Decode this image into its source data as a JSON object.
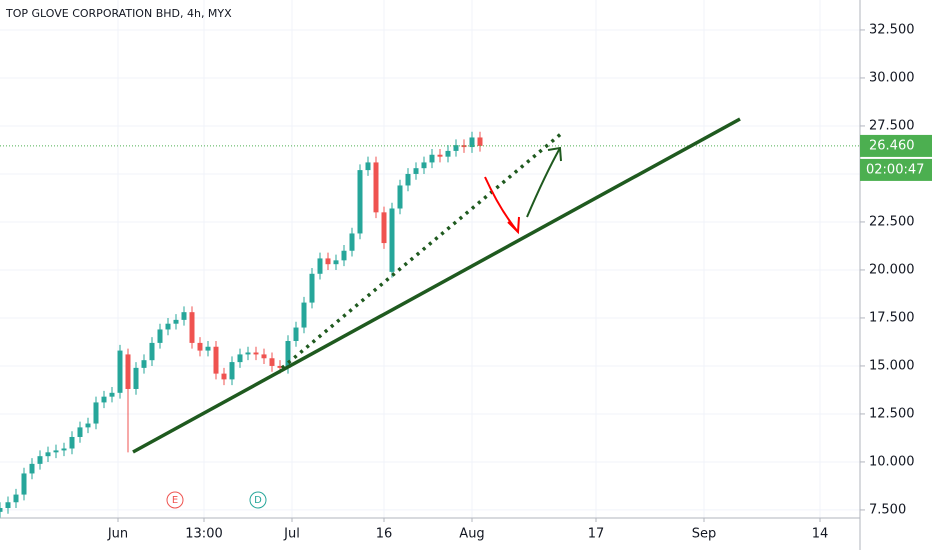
{
  "chart_data": {
    "type": "candlestick",
    "title": "TOP GLOVE CORPORATION BHD, 4h, MYX",
    "x": [
      0,
      2,
      4,
      6,
      8,
      10,
      12,
      14,
      16,
      18,
      20,
      22,
      24,
      26,
      28,
      30,
      32,
      34,
      36,
      38,
      40,
      42,
      44,
      46,
      48,
      50,
      52,
      54,
      56,
      58,
      60,
      62,
      64,
      66,
      68,
      70,
      72,
      74,
      76,
      78,
      80,
      82,
      84,
      86,
      88,
      90,
      92,
      94,
      96,
      98,
      100,
      102,
      104,
      106,
      108,
      110,
      112,
      114,
      116,
      118,
      120
    ],
    "open": [
      7.4,
      7.6,
      7.9,
      8.3,
      9.4,
      9.9,
      10.3,
      10.5,
      10.6,
      10.7,
      11.3,
      11.8,
      12.0,
      13.1,
      13.4,
      13.6,
      15.6,
      13.8,
      14.9,
      15.3,
      16.2,
      16.9,
      17.2,
      17.4,
      17.8,
      16.2,
      15.8,
      16.0,
      14.6,
      14.3,
      15.2,
      15.6,
      15.7,
      15.6,
      15.4,
      15.0,
      14.9,
      16.3,
      17.0,
      18.3,
      19.8,
      20.6,
      20.3,
      20.5,
      21.0,
      21.9,
      25.2,
      25.6,
      23.0,
      19.9,
      23.2,
      24.4,
      25.0,
      25.3,
      25.6,
      26.0,
      25.9,
      26.2,
      26.5,
      26.4,
      26.9
    ],
    "high": [
      7.9,
      8.2,
      8.6,
      9.7,
      10.2,
      10.6,
      10.8,
      10.9,
      11.0,
      11.6,
      12.1,
      12.3,
      13.4,
      13.7,
      13.9,
      16.1,
      15.9,
      15.2,
      15.6,
      16.5,
      17.2,
      17.5,
      17.7,
      18.1,
      18.1,
      16.5,
      16.3,
      16.3,
      14.9,
      15.5,
      15.9,
      16.0,
      16.0,
      15.9,
      15.7,
      15.3,
      16.6,
      17.3,
      18.6,
      20.1,
      20.9,
      20.9,
      20.8,
      21.3,
      22.2,
      25.5,
      25.9,
      25.9,
      23.3,
      23.5,
      24.7,
      25.3,
      25.6,
      25.9,
      26.3,
      26.3,
      26.5,
      26.8,
      26.8,
      27.2,
      27.2
    ],
    "low": [
      7.1,
      7.3,
      7.6,
      8.0,
      9.1,
      9.6,
      10.0,
      10.2,
      10.3,
      10.4,
      11.0,
      11.5,
      11.7,
      12.8,
      13.1,
      13.3,
      10.5,
      13.5,
      14.6,
      15.0,
      15.9,
      16.6,
      16.9,
      17.1,
      15.9,
      15.5,
      15.5,
      14.3,
      14.0,
      14.0,
      14.9,
      15.3,
      15.3,
      15.1,
      14.7,
      14.6,
      14.6,
      16.0,
      16.7,
      18.0,
      19.5,
      20.0,
      20.0,
      20.2,
      20.7,
      21.6,
      24.9,
      22.7,
      21.1,
      19.6,
      22.9,
      24.1,
      24.7,
      25.0,
      25.3,
      25.6,
      25.6,
      25.9,
      26.1,
      26.1,
      26.16
    ],
    "close": [
      7.6,
      7.9,
      8.3,
      9.4,
      9.9,
      10.3,
      10.5,
      10.6,
      10.7,
      11.3,
      11.8,
      12.0,
      13.1,
      13.4,
      13.6,
      15.8,
      13.8,
      14.9,
      15.3,
      16.2,
      16.9,
      17.2,
      17.4,
      17.8,
      16.2,
      15.8,
      16.0,
      14.6,
      14.3,
      15.2,
      15.6,
      15.7,
      15.6,
      15.4,
      15.0,
      14.9,
      16.3,
      17.0,
      18.3,
      19.8,
      20.6,
      20.3,
      20.5,
      21.0,
      21.9,
      25.2,
      25.6,
      23.0,
      21.4,
      23.2,
      24.4,
      25.0,
      25.3,
      25.6,
      26.0,
      25.9,
      26.2,
      26.5,
      26.4,
      26.9,
      26.46
    ],
    "up_color": "#26a69a",
    "down_color": "#ef5350",
    "xlim": [
      0,
      215
    ],
    "xticks": [
      {
        "value": 29.5,
        "label": "Jun"
      },
      {
        "value": 51,
        "label": "13:00"
      },
      {
        "value": 73,
        "label": "Jul"
      },
      {
        "value": 96,
        "label": "16"
      },
      {
        "value": 118,
        "label": "Aug"
      },
      {
        "value": 149,
        "label": "17"
      },
      {
        "value": 176,
        "label": "Sep"
      },
      {
        "value": 205,
        "label": "14"
      }
    ],
    "ylim": [
      7.08,
      34.06
    ],
    "yticks": [
      {
        "value": 7.5,
        "label": "7.500"
      },
      {
        "value": 10,
        "label": "10.000"
      },
      {
        "value": 12.5,
        "label": "12.500"
      },
      {
        "value": 15,
        "label": "15.000"
      },
      {
        "value": 17.5,
        "label": "17.500"
      },
      {
        "value": 20,
        "label": "20.000"
      },
      {
        "value": 22.5,
        "label": "22.500"
      },
      {
        "value": 25,
        "label": "25.000"
      },
      {
        "value": 27.5,
        "label": "27.500"
      },
      {
        "value": 30,
        "label": "30.000"
      },
      {
        "value": 32.5,
        "label": "32.500"
      }
    ],
    "grid": true,
    "last_price": {
      "value": 26.46,
      "label": "26.460"
    },
    "countdown": "02:00:47",
    "events": [
      "E",
      "D"
    ]
  }
}
